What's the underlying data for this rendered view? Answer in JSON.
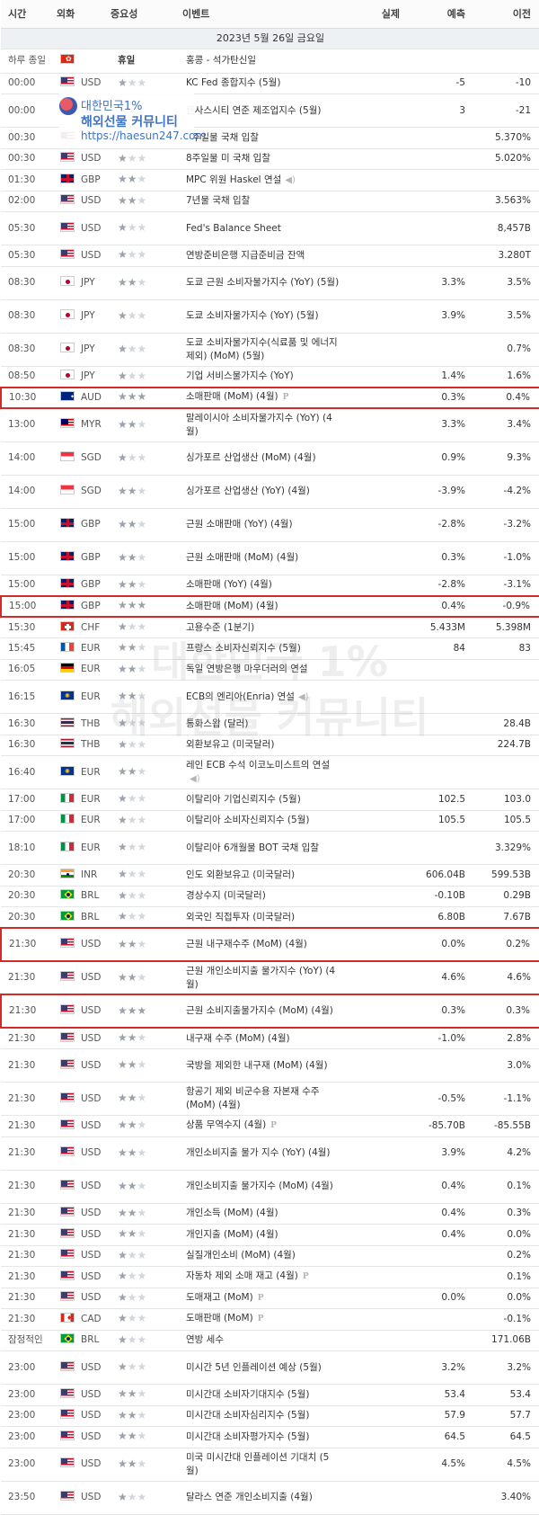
{
  "header": {
    "time": "시간",
    "currency": "외화",
    "importance": "중요성",
    "event": "이벤트",
    "actual": "실제",
    "forecast": "예측",
    "previous": "이전"
  },
  "date_label": "2023년 5월 26일 금요일",
  "holiday": {
    "time": "하루 종일",
    "flag": "hk",
    "label": "휴일",
    "event": "홍콩 - 석가탄신일"
  },
  "rows": [
    {
      "time": "00:00",
      "flag": "us",
      "cur": "USD",
      "stars": 1,
      "event": "KC Fed 종합지수 (5월)",
      "actual": "",
      "forecast": "-5",
      "previous": "-10"
    },
    {
      "time": "00:00",
      "flag": "us",
      "cur": "USD",
      "stars": 1,
      "event": "캔사스시티 연준 제조업지수 (5월)",
      "actual": "",
      "forecast": "3",
      "previous": "-21"
    },
    {
      "time": "00:30",
      "flag": "us",
      "cur": "USD",
      "stars": 1,
      "event": "4주일물 국채 입찰",
      "actual": "",
      "forecast": "",
      "previous": "5.370%"
    },
    {
      "time": "00:30",
      "flag": "us",
      "cur": "USD",
      "stars": 1,
      "event": "8주일물 미 국채 입찰",
      "actual": "",
      "forecast": "",
      "previous": "5.020%"
    },
    {
      "time": "01:30",
      "flag": "gb",
      "cur": "GBP",
      "stars": 2,
      "event": "MPC 위원 Haskel 연설",
      "icon": "spk",
      "actual": "",
      "forecast": "",
      "previous": ""
    },
    {
      "time": "02:00",
      "flag": "us",
      "cur": "USD",
      "stars": 2,
      "event": "7년물 국채 입찰",
      "actual": "",
      "forecast": "",
      "previous": "3.563%"
    },
    {
      "time": "05:30",
      "flag": "us",
      "cur": "USD",
      "stars": 1,
      "event": "Fed's Balance Sheet",
      "actual": "",
      "forecast": "",
      "previous": "8,457B"
    },
    {
      "time": "05:30",
      "flag": "us",
      "cur": "USD",
      "stars": 1,
      "event": "연방준비은행 지급준비금 잔액",
      "actual": "",
      "forecast": "",
      "previous": "3.280T"
    },
    {
      "time": "08:30",
      "flag": "jp",
      "cur": "JPY",
      "stars": 2,
      "event": "도쿄 근원 소비자물가지수 (YoY) (5월)",
      "actual": "",
      "forecast": "3.3%",
      "previous": "3.5%"
    },
    {
      "time": "08:30",
      "flag": "jp",
      "cur": "JPY",
      "stars": 1,
      "event": "도쿄 소비자물가지수 (YoY) (5월)",
      "actual": "",
      "forecast": "3.9%",
      "previous": "3.5%"
    },
    {
      "time": "08:30",
      "flag": "jp",
      "cur": "JPY",
      "stars": 1,
      "event": "도쿄 소비자물가지수(식료품 및 에너지 제외) (MoM) (5월)",
      "actual": "",
      "forecast": "",
      "previous": "0.7%"
    },
    {
      "time": "08:50",
      "flag": "jp",
      "cur": "JPY",
      "stars": 1,
      "event": "기업 서비스물가지수 (YoY)",
      "actual": "",
      "forecast": "1.4%",
      "previous": "1.6%"
    },
    {
      "time": "10:30",
      "flag": "au",
      "cur": "AUD",
      "stars": 3,
      "event": "소매판매 (MoM) (4월)",
      "icon": "p",
      "actual": "",
      "forecast": "0.3%",
      "previous": "0.4%",
      "hl": true
    },
    {
      "time": "13:00",
      "flag": "my",
      "cur": "MYR",
      "stars": 2,
      "event": "말레이시아 소비자물가지수 (YoY) (4월)",
      "actual": "",
      "forecast": "3.3%",
      "previous": "3.4%"
    },
    {
      "time": "14:00",
      "flag": "sg",
      "cur": "SGD",
      "stars": 1,
      "event": "싱가포르 산업생산 (MoM) (4월)",
      "actual": "",
      "forecast": "0.9%",
      "previous": "9.3%"
    },
    {
      "time": "14:00",
      "flag": "sg",
      "cur": "SGD",
      "stars": 2,
      "event": "싱가포르 산업생산 (YoY) (4월)",
      "actual": "",
      "forecast": "-3.9%",
      "previous": "-4.2%"
    },
    {
      "time": "15:00",
      "flag": "gb",
      "cur": "GBP",
      "stars": 2,
      "event": "근원 소매판매 (YoY) (4월)",
      "actual": "",
      "forecast": "-2.8%",
      "previous": "-3.2%"
    },
    {
      "time": "15:00",
      "flag": "gb",
      "cur": "GBP",
      "stars": 2,
      "event": "근원 소매판매 (MoM) (4월)",
      "actual": "",
      "forecast": "0.3%",
      "previous": "-1.0%"
    },
    {
      "time": "15:00",
      "flag": "gb",
      "cur": "GBP",
      "stars": 2,
      "event": "소매판매 (YoY) (4월)",
      "actual": "",
      "forecast": "-2.8%",
      "previous": "-3.1%"
    },
    {
      "time": "15:00",
      "flag": "gb",
      "cur": "GBP",
      "stars": 3,
      "event": "소매판매 (MoM) (4월)",
      "actual": "",
      "forecast": "0.4%",
      "previous": "-0.9%",
      "hl": true
    },
    {
      "time": "15:30",
      "flag": "ch",
      "cur": "CHF",
      "stars": 1,
      "event": "고용수준 (1분기)",
      "actual": "",
      "forecast": "5.433M",
      "previous": "5.398M"
    },
    {
      "time": "15:45",
      "flag": "fr",
      "cur": "EUR",
      "stars": 2,
      "event": "프랑스 소비자신뢰지수 (5월)",
      "actual": "",
      "forecast": "84",
      "previous": "83"
    },
    {
      "time": "16:05",
      "flag": "de",
      "cur": "EUR",
      "stars": 2,
      "event": "독일 연방은행 마우더러의 연설",
      "actual": "",
      "forecast": "",
      "previous": ""
    },
    {
      "time": "16:15",
      "flag": "eu",
      "cur": "EUR",
      "stars": 2,
      "event": "ECB의 엔리아(Enria) 연설",
      "icon": "spk",
      "actual": "",
      "forecast": "",
      "previous": ""
    },
    {
      "time": "16:30",
      "flag": "th",
      "cur": "THB",
      "stars": 1,
      "event": "통화스왑 (달러)",
      "actual": "",
      "forecast": "",
      "previous": "28.4B"
    },
    {
      "time": "16:30",
      "flag": "th",
      "cur": "THB",
      "stars": 1,
      "event": "외환보유고 (미국달러)",
      "actual": "",
      "forecast": "",
      "previous": "224.7B"
    },
    {
      "time": "16:40",
      "flag": "eu",
      "cur": "EUR",
      "stars": 2,
      "event": "레인 ECB 수석 이코노미스트의 연설",
      "icon": "spk",
      "actual": "",
      "forecast": "",
      "previous": ""
    },
    {
      "time": "17:00",
      "flag": "it",
      "cur": "EUR",
      "stars": 1,
      "event": "이탈리아 기업신뢰지수 (5월)",
      "actual": "",
      "forecast": "102.5",
      "previous": "103.0"
    },
    {
      "time": "17:00",
      "flag": "it",
      "cur": "EUR",
      "stars": 1,
      "event": "이탈리아 소비자신뢰지수 (5월)",
      "actual": "",
      "forecast": "105.5",
      "previous": "105.5"
    },
    {
      "time": "18:10",
      "flag": "it",
      "cur": "EUR",
      "stars": 1,
      "event": "이탈리아 6개월물 BOT 국채 입찰",
      "actual": "",
      "forecast": "",
      "previous": "3.329%"
    },
    {
      "time": "20:30",
      "flag": "in",
      "cur": "INR",
      "stars": 1,
      "event": "인도 외환보유고 (미국달러)",
      "actual": "",
      "forecast": "606.04B",
      "previous": "599.53B"
    },
    {
      "time": "20:30",
      "flag": "br",
      "cur": "BRL",
      "stars": 1,
      "event": "경상수지 (미국달러)",
      "actual": "",
      "forecast": "-0.10B",
      "previous": "0.29B"
    },
    {
      "time": "20:30",
      "flag": "br",
      "cur": "BRL",
      "stars": 1,
      "event": "외국인 직접투자 (미국달러)",
      "actual": "",
      "forecast": "6.80B",
      "previous": "7.67B"
    },
    {
      "time": "21:30",
      "flag": "us",
      "cur": "USD",
      "stars": 2,
      "event": "근원 내구재수주 (MoM) (4월)",
      "actual": "",
      "forecast": "0.0%",
      "previous": "0.2%",
      "hl": true
    },
    {
      "time": "21:30",
      "flag": "us",
      "cur": "USD",
      "stars": 2,
      "event": "근원 개인소비지출 물가지수 (YoY) (4월)",
      "actual": "",
      "forecast": "4.6%",
      "previous": "4.6%"
    },
    {
      "time": "21:30",
      "flag": "us",
      "cur": "USD",
      "stars": 3,
      "event": "근원 소비지출물가지수 (MoM) (4월)",
      "actual": "",
      "forecast": "0.3%",
      "previous": "0.3%",
      "hl": true
    },
    {
      "time": "21:30",
      "flag": "us",
      "cur": "USD",
      "stars": 2,
      "event": "내구재 수주 (MoM) (4월)",
      "actual": "",
      "forecast": "-1.0%",
      "previous": "2.8%"
    },
    {
      "time": "21:30",
      "flag": "us",
      "cur": "USD",
      "stars": 2,
      "event": "국방을 제외한 내구재 (MoM) (4월)",
      "actual": "",
      "forecast": "",
      "previous": "3.0%"
    },
    {
      "time": "21:30",
      "flag": "us",
      "cur": "USD",
      "stars": 2,
      "event": "항공기 제외 비군수용 자본재 수주 (MoM) (4월)",
      "actual": "",
      "forecast": "-0.5%",
      "previous": "-1.1%"
    },
    {
      "time": "21:30",
      "flag": "us",
      "cur": "USD",
      "stars": 2,
      "event": "상품 무역수지 (4월)",
      "icon": "p",
      "actual": "",
      "forecast": "-85.70B",
      "previous": "-85.55B"
    },
    {
      "time": "21:30",
      "flag": "us",
      "cur": "USD",
      "stars": 2,
      "event": "개인소비지출 물가 지수 (YoY) (4월)",
      "actual": "",
      "forecast": "3.9%",
      "previous": "4.2%"
    },
    {
      "time": "21:30",
      "flag": "us",
      "cur": "USD",
      "stars": 2,
      "event": "개인소비지출 물가지수 (MoM) (4월)",
      "actual": "",
      "forecast": "0.4%",
      "previous": "0.1%"
    },
    {
      "time": "21:30",
      "flag": "us",
      "cur": "USD",
      "stars": 2,
      "event": "개인소득 (MoM) (4월)",
      "actual": "",
      "forecast": "0.4%",
      "previous": "0.3%"
    },
    {
      "time": "21:30",
      "flag": "us",
      "cur": "USD",
      "stars": 2,
      "event": "개인지출 (MoM) (4월)",
      "actual": "",
      "forecast": "0.4%",
      "previous": "0.0%"
    },
    {
      "time": "21:30",
      "flag": "us",
      "cur": "USD",
      "stars": 1,
      "event": "실질개인소비 (MoM) (4월)",
      "actual": "",
      "forecast": "",
      "previous": "0.2%"
    },
    {
      "time": "21:30",
      "flag": "us",
      "cur": "USD",
      "stars": 1,
      "event": "자동차 제외 소매 재고 (4월)",
      "icon": "p",
      "actual": "",
      "forecast": "",
      "previous": "0.1%"
    },
    {
      "time": "21:30",
      "flag": "us",
      "cur": "USD",
      "stars": 1,
      "event": "도매재고 (MoM)",
      "icon": "p",
      "actual": "",
      "forecast": "0.0%",
      "previous": "0.0%"
    },
    {
      "time": "21:30",
      "flag": "ca",
      "cur": "CAD",
      "stars": 1,
      "event": "도매판매 (MoM)",
      "icon": "p",
      "actual": "",
      "forecast": "",
      "previous": "-0.1%"
    },
    {
      "time": "잠정적인",
      "flag": "br",
      "cur": "BRL",
      "stars": 1,
      "event": "연방 세수",
      "actual": "",
      "forecast": "",
      "previous": "171.06B"
    },
    {
      "time": "23:00",
      "flag": "us",
      "cur": "USD",
      "stars": 1,
      "event": "미시간 5년 인플레이션 예상 (5월)",
      "actual": "",
      "forecast": "3.2%",
      "previous": "3.2%"
    },
    {
      "time": "23:00",
      "flag": "us",
      "cur": "USD",
      "stars": 2,
      "event": "미시간대 소비자기대지수 (5월)",
      "actual": "",
      "forecast": "53.4",
      "previous": "53.4"
    },
    {
      "time": "23:00",
      "flag": "us",
      "cur": "USD",
      "stars": 2,
      "event": "미시간대 소비자심리지수 (5월)",
      "actual": "",
      "forecast": "57.9",
      "previous": "57.7"
    },
    {
      "time": "23:00",
      "flag": "us",
      "cur": "USD",
      "stars": 2,
      "event": "미시간대 소비자평가지수 (5월)",
      "actual": "",
      "forecast": "64.5",
      "previous": "64.5"
    },
    {
      "time": "23:00",
      "flag": "us",
      "cur": "USD",
      "stars": 2,
      "event": "미국 미시간대 인플레이션 기대치 (5월)",
      "actual": "",
      "forecast": "4.5%",
      "previous": "4.5%"
    },
    {
      "time": "23:50",
      "flag": "us",
      "cur": "USD",
      "stars": 1,
      "event": "달라스 연준 개인소비지출 (4월)",
      "actual": "",
      "forecast": "",
      "previous": "3.40%"
    }
  ],
  "badge": {
    "line1": "대한민국1%",
    "line2": "해외선물 커뮤니티",
    "line3": "https://haesun247.com"
  },
  "watermark": {
    "line1": "대한민국 1%",
    "line2": "해외선물 커뮤니티"
  },
  "colors": {
    "highlight": "#d42a2a",
    "star_on": "#9aa1a9",
    "star_off": "#d3d6da",
    "date_bg": "#eef1f4"
  }
}
